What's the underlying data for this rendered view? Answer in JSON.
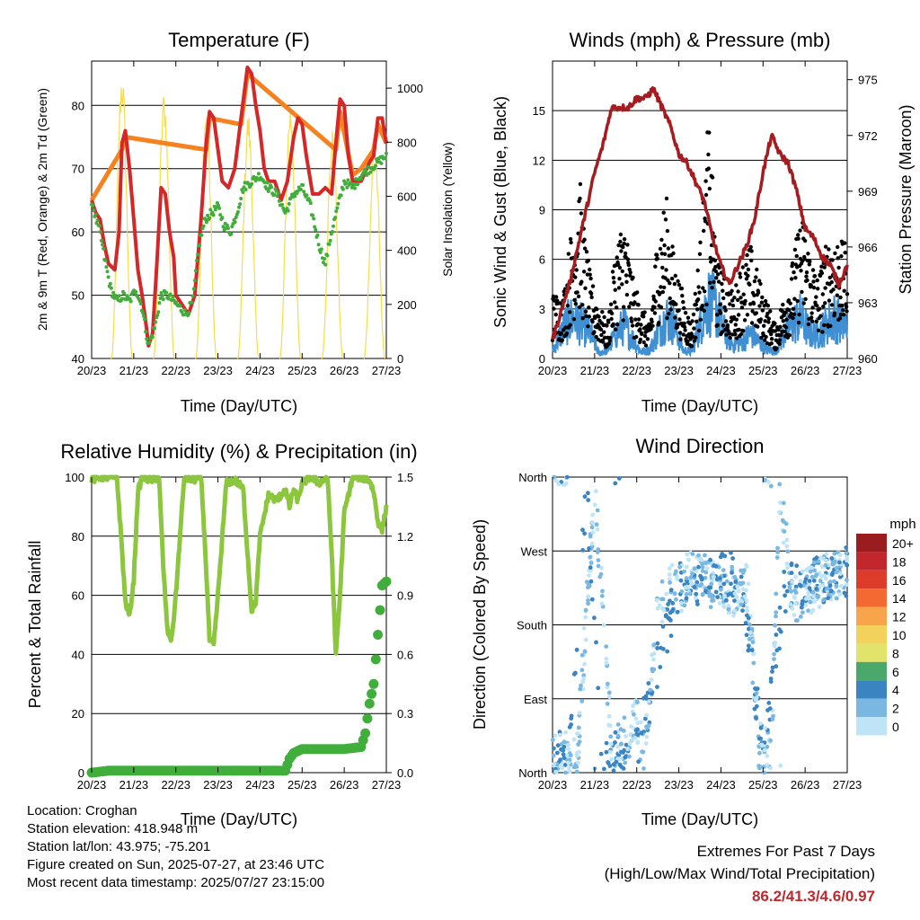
{
  "x_ticks": [
    "20/23",
    "21/23",
    "22/23",
    "23/23",
    "24/23",
    "25/23",
    "26/23",
    "27/23"
  ],
  "charts": {
    "temperature": {
      "title": "Temperature (F)",
      "xlabel": "Time (Day/UTC)",
      "ylabel_left": "2m & 9m T (Red, Orange) & 2m Td (Green)",
      "ylabel_right": "Solar Insolation (Yellow)",
      "left_ticks": [
        "40",
        "50",
        "60",
        "70",
        "80"
      ],
      "right_ticks": [
        "0",
        "200",
        "400",
        "600",
        "800",
        "1000"
      ]
    },
    "winds": {
      "title": "Winds (mph) & Pressure (mb)",
      "xlabel": "Time (Day/UTC)",
      "ylabel_left": "Sonic Wind & Gust (Blue, Black)",
      "ylabel_right": "Station Pressure (Maroon)",
      "left_ticks": [
        "0",
        "3",
        "6",
        "9",
        "12",
        "15"
      ],
      "right_ticks": [
        "960",
        "963",
        "966",
        "969",
        "972",
        "975"
      ]
    },
    "humidity": {
      "title": "Relative Humidity (%) & Precipitation (in)",
      "xlabel": "Time (Day/UTC)",
      "ylabel_left": "Percent & Total Rainfall",
      "left_ticks": [
        "0",
        "20",
        "40",
        "60",
        "80",
        "100"
      ],
      "right_ticks": [
        "0.0",
        "0.3",
        "0.6",
        "0.9",
        "1.2",
        "1.5"
      ]
    },
    "direction": {
      "title": "Wind Direction",
      "xlabel": "Time (Day/UTC)",
      "ylabel_left": "Direction (Colored By Speed)",
      "dir_ticks": [
        "North",
        "East",
        "South",
        "West",
        "North"
      ],
      "legend_title": "mph",
      "legend_labels": [
        "20+",
        "18",
        "16",
        "14",
        "12",
        "10",
        "8",
        "6",
        "4",
        "2",
        "0"
      ],
      "legend_colors": [
        "#9b1c1f",
        "#c1272d",
        "#dd3c2b",
        "#f26a31",
        "#f8a44a",
        "#f2d25b",
        "#e2e36b",
        "#4aa86a",
        "#3a84c2",
        "#7ab8e2",
        "#bfe4f7"
      ]
    }
  },
  "chart_data": [
    {
      "type": "line",
      "title": "Temperature (F)",
      "xlabel": "Time (Day/UTC)",
      "ylabel": "2m & 9m T (Red, Orange) & 2m Td (Green)",
      "y2label": "Solar Insolation (Yellow)",
      "x_ticks": [
        "20/23",
        "21/23",
        "22/23",
        "23/23",
        "24/23",
        "25/23",
        "26/23",
        "27/23"
      ],
      "ylim": [
        40,
        87
      ],
      "y2lim": [
        0,
        1100
      ],
      "series": [
        {
          "color": "#d62728",
          "x": [
            0.0,
            0.1,
            0.2,
            0.3,
            0.4,
            0.55,
            0.65,
            0.72,
            0.8,
            0.9,
            1.0,
            1.1,
            1.2,
            1.3,
            1.35,
            1.45,
            1.55,
            1.65,
            1.75,
            1.85,
            1.95,
            2.0,
            2.1,
            2.2,
            2.3,
            2.45,
            2.6,
            2.72,
            2.8,
            2.9,
            3.0,
            3.1,
            3.25,
            3.4,
            3.55,
            3.7,
            3.8,
            3.9,
            4.0,
            4.1,
            4.2,
            4.35,
            4.5,
            4.65,
            4.8,
            4.9,
            5.0,
            5.1,
            5.25,
            5.4,
            5.55,
            5.7,
            5.8,
            5.9,
            6.0,
            6.1,
            6.2,
            6.4,
            6.6,
            6.7,
            6.8,
            6.9,
            7.0
          ],
          "y": [
            65,
            63,
            62,
            58,
            55,
            54,
            60,
            74,
            76,
            70,
            62,
            54,
            50,
            45,
            42,
            44,
            55,
            67,
            66,
            60,
            56,
            50,
            49,
            48,
            47,
            50,
            62,
            74,
            79,
            78,
            73,
            68,
            67,
            70,
            78,
            86,
            85,
            80,
            76,
            70,
            68,
            68,
            65,
            68,
            75,
            78,
            77,
            72,
            66,
            66,
            67,
            66,
            74,
            81,
            80,
            72,
            68,
            68,
            71,
            72,
            78,
            78,
            74
          ]
        },
        {
          "color": "#f5821f",
          "x": [
            0.0,
            0.72,
            0.8,
            2.72,
            2.8,
            3.55,
            3.7,
            5.8,
            5.9,
            6.2,
            6.4,
            6.6,
            6.7,
            6.8,
            7.0
          ],
          "y": [
            65,
            73,
            75,
            73,
            78,
            77,
            85,
            73,
            79,
            69,
            70,
            72,
            73,
            77,
            74
          ]
        },
        {
          "color": "#41ae3c",
          "x": [
            0.0,
            0.1,
            0.2,
            0.3,
            0.45,
            0.6,
            0.75,
            0.9,
            1.05,
            1.2,
            1.35,
            1.5,
            1.65,
            1.8,
            1.95,
            2.1,
            2.25,
            2.4,
            2.55,
            2.7,
            2.85,
            3.0,
            3.15,
            3.3,
            3.45,
            3.6,
            3.8,
            4.0,
            4.2,
            4.4,
            4.6,
            4.8,
            5.0,
            5.2,
            5.4,
            5.55,
            5.7,
            5.85,
            6.0,
            6.2,
            6.4,
            6.6,
            6.8,
            7.0
          ],
          "y": [
            65,
            62,
            60,
            56,
            51,
            49,
            50,
            49,
            51,
            48,
            42,
            45,
            50,
            50,
            49,
            48,
            47,
            49,
            58,
            62,
            63,
            64,
            61,
            60,
            63,
            67,
            68,
            69,
            67,
            66,
            63,
            66,
            67,
            64,
            58,
            55,
            60,
            64,
            68,
            67,
            69,
            70,
            71,
            72
          ]
        },
        {
          "color": "#f7dc4a",
          "peaks": [
            {
              "day": 0.72,
              "value": 1080
            },
            {
              "day": 1.72,
              "value": 1000
            },
            {
              "day": 2.72,
              "value": 950
            },
            {
              "day": 3.72,
              "value": 920
            },
            {
              "day": 4.72,
              "value": 960
            },
            {
              "day": 5.72,
              "value": 850
            },
            {
              "day": 6.72,
              "value": 820
            }
          ]
        }
      ]
    },
    {
      "type": "scatter",
      "title": "Winds (mph) & Pressure (mb)",
      "xlabel": "Time (Day/UTC)",
      "ylabel": "Sonic Wind & Gust (Blue, Black)",
      "y2label": "Station Pressure (Maroon)",
      "x_ticks": [
        "20/23",
        "21/23",
        "22/23",
        "23/23",
        "24/23",
        "25/23",
        "26/23",
        "27/23"
      ],
      "ylim": [
        0,
        18
      ],
      "y2lim": [
        960,
        976
      ],
      "series": [
        {
          "color": "#000000",
          "x": [
            0.25,
            0.5,
            0.65,
            0.75,
            0.9,
            1.3,
            1.5,
            1.7,
            1.9,
            2.3,
            2.5,
            2.7,
            2.9,
            3.3,
            3.5,
            3.65,
            3.7,
            3.8,
            3.9,
            4.3,
            4.5,
            4.7,
            4.9,
            5.3,
            5.5,
            5.7,
            5.9,
            6.3,
            6.5,
            6.7,
            6.9
          ],
          "y": [
            4,
            9,
            11,
            8,
            5,
            2,
            7,
            9,
            5,
            2,
            8,
            10,
            6,
            2,
            7,
            12,
            15,
            11,
            6,
            4,
            6,
            7,
            5,
            2,
            4,
            6,
            9,
            5,
            7,
            8,
            7
          ]
        },
        {
          "color": "#3f8fd2",
          "x": [
            0.0,
            0.1,
            0.2,
            0.3,
            0.5,
            0.7,
            0.9,
            1.1,
            1.3,
            1.5,
            1.7,
            1.9,
            2.1,
            2.3,
            2.5,
            2.7,
            2.9,
            3.1,
            3.3,
            3.5,
            3.7,
            3.9,
            4.1,
            4.3,
            4.5,
            4.7,
            4.9,
            5.1,
            5.3,
            5.5,
            5.7,
            5.9,
            6.1,
            6.3,
            6.5,
            6.7,
            6.9
          ],
          "y": [
            0.5,
            1,
            1.5,
            2,
            2.5,
            2,
            1.5,
            0.3,
            0.5,
            1.5,
            2,
            1.2,
            0.4,
            0.5,
            1.5,
            2.5,
            2,
            0.5,
            0.4,
            2,
            3.5,
            3,
            1.5,
            0.8,
            1,
            1.5,
            1,
            0.5,
            0.5,
            1.5,
            2,
            2.5,
            1.5,
            1.5,
            2,
            2.5,
            2
          ]
        },
        {
          "color": "#a51c20",
          "x": [
            0.0,
            0.2,
            0.4,
            0.6,
            0.8,
            1.0,
            1.2,
            1.4,
            1.6,
            1.8,
            2.0,
            2.2,
            2.4,
            2.6,
            2.8,
            3.0,
            3.2,
            3.4,
            3.6,
            3.8,
            4.0,
            4.2,
            4.4,
            4.6,
            4.8,
            5.0,
            5.2,
            5.4,
            5.6,
            5.8,
            6.0,
            6.2,
            6.4,
            6.6,
            6.8,
            7.0
          ],
          "y": [
            961,
            962.5,
            964,
            966,
            968,
            970,
            971.5,
            973.5,
            973.5,
            973.5,
            974,
            974,
            974.5,
            973.5,
            972.5,
            971,
            970.5,
            969.5,
            968.5,
            966.5,
            965,
            964,
            965,
            966,
            967.5,
            970,
            972,
            971,
            970.5,
            969,
            967,
            966.5,
            965.5,
            965,
            964,
            965
          ]
        }
      ]
    },
    {
      "type": "line",
      "title": "Relative Humidity (%) & Precipitation (in)",
      "xlabel": "Time (Day/UTC)",
      "ylabel": "Percent & Total Rainfall",
      "x_ticks": [
        "20/23",
        "21/23",
        "22/23",
        "23/23",
        "24/23",
        "25/23",
        "26/23",
        "27/23"
      ],
      "ylim": [
        0,
        100
      ],
      "y2lim": [
        0.0,
        1.5
      ],
      "series": [
        {
          "color": "#8cc63f",
          "x": [
            0.0,
            0.2,
            0.4,
            0.6,
            0.7,
            0.8,
            0.9,
            1.0,
            1.1,
            1.2,
            1.4,
            1.6,
            1.7,
            1.8,
            1.9,
            2.0,
            2.2,
            2.4,
            2.6,
            2.7,
            2.8,
            2.9,
            3.0,
            3.2,
            3.4,
            3.6,
            3.7,
            3.8,
            3.9,
            4.0,
            4.2,
            4.4,
            4.6,
            4.7,
            4.8,
            4.9,
            5.0,
            5.2,
            5.4,
            5.6,
            5.7,
            5.8,
            5.9,
            6.0,
            6.2,
            6.4,
            6.6,
            6.7,
            6.8,
            6.9,
            7.0
          ],
          "y": [
            99,
            100,
            100,
            100,
            80,
            58,
            53,
            65,
            95,
            100,
            99,
            100,
            70,
            48,
            45,
            60,
            100,
            99,
            100,
            75,
            45,
            43,
            60,
            98,
            99,
            96,
            75,
            55,
            58,
            80,
            94,
            92,
            96,
            90,
            96,
            92,
            98,
            100,
            98,
            100,
            75,
            40,
            60,
            88,
            100,
            100,
            99,
            95,
            85,
            82,
            90
          ]
        },
        {
          "color": "#41ae3c",
          "x": [
            0.0,
            0.4,
            4.6,
            4.7,
            4.8,
            5.0,
            6.0,
            6.4,
            6.5,
            6.6,
            6.7,
            6.8,
            6.9,
            7.0
          ],
          "y": [
            0.0,
            0.01,
            0.01,
            0.07,
            0.1,
            0.12,
            0.12,
            0.13,
            0.2,
            0.35,
            0.45,
            0.7,
            0.95,
            0.97
          ]
        }
      ]
    },
    {
      "type": "scatter",
      "title": "Wind Direction",
      "xlabel": "Time (Day/UTC)",
      "ylabel": "Direction (Colored By Speed)",
      "x_ticks": [
        "20/23",
        "21/23",
        "22/23",
        "23/23",
        "24/23",
        "25/23",
        "26/23",
        "27/23"
      ],
      "y_ticks": [
        "North",
        "East",
        "South",
        "West",
        "North"
      ],
      "ylim": [
        0,
        360
      ],
      "series": [
        {
          "color": "#7ab8e2",
          "x": [
            0.3,
            0.6,
            1.0,
            1.4,
            1.7,
            2.0,
            2.2,
            2.5,
            2.8,
            3.0,
            3.2,
            3.5,
            3.8,
            4.0,
            4.3,
            4.6,
            4.9,
            5.2,
            5.4,
            5.7,
            6.0,
            6.3,
            6.6,
            6.9
          ],
          "y": [
            20,
            30,
            350,
            30,
            40,
            60,
            20,
            200,
            230,
            220,
            240,
            240,
            230,
            230,
            220,
            240,
            35,
            15,
            350,
            210,
            220,
            230,
            240,
            240
          ]
        },
        {
          "color": "#3a84c2",
          "x": [
            0.4,
            0.8,
            1.2,
            1.6,
            2.0,
            3.0,
            3.4,
            3.8,
            4.2,
            4.5,
            5.0,
            5.5,
            6.0,
            6.4,
            6.8
          ],
          "y": [
            20,
            350,
            15,
            25,
            30,
            230,
            235,
            235,
            240,
            230,
            20,
            225,
            230,
            235,
            245
          ]
        }
      ]
    }
  ],
  "footer": {
    "location": "Location: Croghan",
    "elevation": "Station elevation: 418.948 m",
    "latlon": "Station lat/lon: 43.975; -75.201",
    "created": "Figure created on Sun, 2025-07-27, at 23:46 UTC",
    "latest": "Most recent data timestamp: 2025/07/27 23:15:00",
    "extremes_title": "Extremes For Past 7 Days",
    "extremes_sub": "(High/Low/Max Wind/Total Precipitation)",
    "extremes_values": "86.2/41.3/4.6/0.97"
  }
}
